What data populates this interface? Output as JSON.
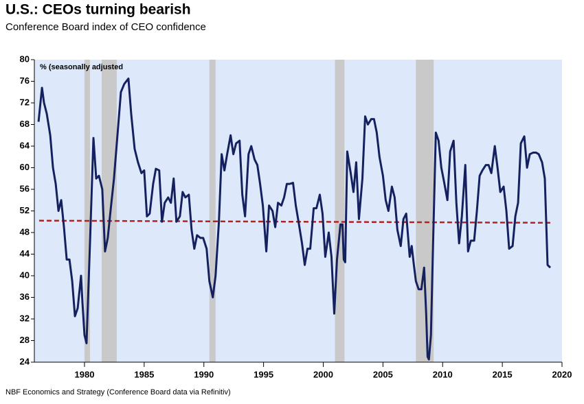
{
  "chart_data": {
    "type": "line",
    "title": "U.S.: CEOs turning bearish",
    "subtitle": "Conference Board index of CEO confidence",
    "annotation": "% (seasonally adjusted",
    "source": "NBF Economics and Strategy (Conference Board data via Refinitiv)",
    "x": [
      1976.15,
      1976.44,
      1976.61,
      1976.84,
      1977.13,
      1977.36,
      1977.59,
      1977.82,
      1978.05,
      1978.28,
      1978.51,
      1978.74,
      1978.97,
      1979.2,
      1979.43,
      1979.71,
      1979.83,
      1980.0,
      1980.17,
      1980.46,
      1980.75,
      1980.98,
      1981.21,
      1981.49,
      1981.72,
      1981.95,
      1982.18,
      1982.47,
      1982.76,
      1983.05,
      1983.33,
      1983.68,
      1983.91,
      1984.2,
      1984.48,
      1984.77,
      1985.0,
      1985.23,
      1985.46,
      1985.75,
      1985.98,
      1986.26,
      1986.49,
      1986.72,
      1987.01,
      1987.24,
      1987.47,
      1987.7,
      1987.99,
      1988.22,
      1988.45,
      1988.74,
      1988.97,
      1989.2,
      1989.43,
      1989.71,
      1989.94,
      1990.23,
      1990.46,
      1990.75,
      1990.98,
      1991.26,
      1991.49,
      1991.72,
      1991.95,
      1992.24,
      1992.47,
      1992.7,
      1992.99,
      1993.22,
      1993.45,
      1993.74,
      1993.97,
      1994.25,
      1994.48,
      1994.71,
      1994.94,
      1995.23,
      1995.46,
      1995.75,
      1995.98,
      1996.21,
      1996.49,
      1996.72,
      1996.95,
      1997.18,
      1997.47,
      1997.7,
      1997.93,
      1998.22,
      1998.45,
      1998.68,
      1998.91,
      1999.2,
      1999.43,
      1999.71,
      1999.94,
      2000.17,
      2000.46,
      2000.69,
      2000.92,
      2001.15,
      2001.44,
      2001.61,
      2001.72,
      2001.84,
      2002.01,
      2002.3,
      2002.53,
      2002.76,
      2002.99,
      2003.28,
      2003.51,
      2003.74,
      2004.02,
      2004.25,
      2004.48,
      2004.71,
      2005.0,
      2005.23,
      2005.46,
      2005.75,
      2005.98,
      2006.21,
      2006.49,
      2006.72,
      2006.95,
      2007.24,
      2007.41,
      2007.59,
      2007.76,
      2007.99,
      2008.22,
      2008.45,
      2008.62,
      2008.74,
      2008.85,
      2009.02,
      2009.2,
      2009.43,
      2009.66,
      2009.89,
      2010.11,
      2010.4,
      2010.63,
      2010.92,
      2011.15,
      2011.38,
      2011.61,
      2011.9,
      2012.13,
      2012.36,
      2012.64,
      2012.87,
      2013.1,
      2013.33,
      2013.62,
      2013.85,
      2014.08,
      2014.37,
      2014.6,
      2014.83,
      2015.11,
      2015.34,
      2015.57,
      2015.86,
      2016.09,
      2016.32,
      2016.55,
      2016.84,
      2017.07,
      2017.3,
      2017.59,
      2017.82,
      2018.05,
      2018.33,
      2018.56,
      2018.79,
      2019.02
    ],
    "series": [
      {
        "name": "CEO confidence",
        "color": "#15215e",
        "values": [
          68.5,
          74.8,
          72,
          70,
          66,
          60,
          57,
          52,
          54,
          49,
          43,
          43,
          39,
          32.5,
          34,
          40,
          35,
          29,
          27.5,
          46,
          65.5,
          58,
          58.5,
          56,
          44.5,
          47,
          52,
          58,
          66,
          74,
          75.5,
          76.5,
          70,
          63.5,
          61,
          59,
          59.5,
          51,
          51.5,
          57,
          59.8,
          59.5,
          50,
          53.5,
          54.5,
          53.5,
          58,
          50,
          51,
          55.5,
          54.5,
          55,
          48.5,
          45,
          47.5,
          47,
          47,
          45,
          39,
          36,
          40,
          50,
          62.5,
          59.5,
          62.5,
          66,
          62.5,
          64.5,
          65,
          55,
          51,
          62.5,
          64,
          61.5,
          60.5,
          57,
          53,
          44.5,
          53,
          52,
          49,
          53.5,
          53,
          54.5,
          57,
          57,
          57.2,
          53,
          50,
          46,
          42,
          45,
          45,
          52.5,
          52.5,
          55,
          51.5,
          43.5,
          48,
          43.5,
          33,
          43,
          49.5,
          49.5,
          43,
          42.5,
          63,
          59,
          55.5,
          61,
          50.5,
          58,
          69.5,
          68,
          69,
          69,
          66.5,
          62,
          58.5,
          54,
          52,
          56.5,
          54.5,
          48.5,
          45.5,
          50.5,
          51.5,
          43.5,
          45.5,
          42,
          39,
          37.5,
          37.5,
          41.5,
          33,
          25,
          24.5,
          29,
          46,
          66.5,
          65,
          60,
          57.5,
          54,
          63,
          65,
          53.5,
          46,
          51,
          60.5,
          44.5,
          46.5,
          46.5,
          52,
          58.5,
          59.5,
          60.5,
          60.5,
          59,
          64,
          60,
          55.5,
          56.5,
          52,
          45,
          45.5,
          51,
          53.5,
          64.5,
          65.8,
          60,
          62.5,
          62.8,
          62.8,
          62.5,
          61,
          58,
          42,
          41.5
        ]
      }
    ],
    "reference_line": {
      "x": [
        1976.2,
        2019.2
      ],
      "values": [
        50.2,
        49.8
      ],
      "color": "#b22222"
    },
    "recessions": [
      [
        1980.0,
        1980.46
      ],
      [
        1981.44,
        1982.7
      ],
      [
        1990.46,
        1990.98
      ],
      [
        2000.98,
        2001.78
      ],
      [
        2007.76,
        2009.25
      ]
    ],
    "recession_color": "#c9c9c9",
    "background": "#dde9fb",
    "xlim": [
      1975.8,
      2020
    ],
    "ylim": [
      24,
      80
    ],
    "xticks": [
      1980,
      1985,
      1990,
      1995,
      2000,
      2005,
      2010,
      2015,
      2020
    ],
    "yticks": [
      24,
      28,
      32,
      36,
      40,
      44,
      48,
      52,
      56,
      60,
      64,
      68,
      72,
      76,
      80
    ]
  }
}
